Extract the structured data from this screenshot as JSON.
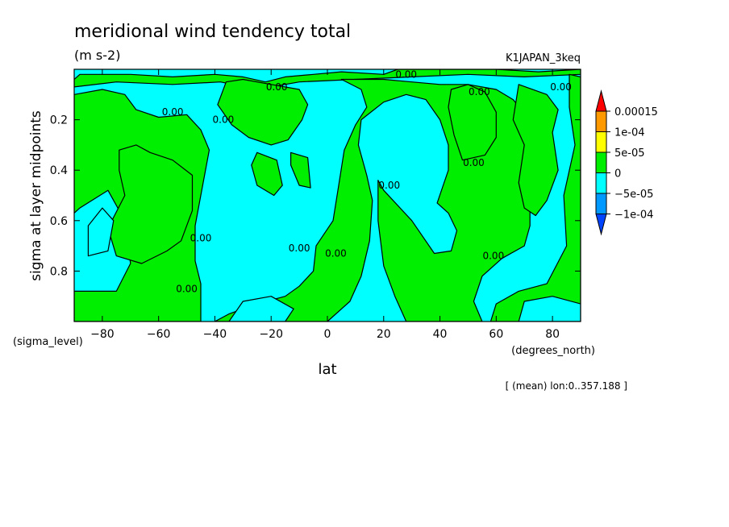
{
  "chart_data": {
    "type": "heatmap",
    "subtype": "filled-contour",
    "title": "meridional wind tendency total",
    "subtitle": "(m s-2)",
    "dataset": "K1JAPAN_3keq",
    "xlabel": "lat",
    "xunits": "(degrees_north)",
    "ylabel": "sigma at layer midpoints",
    "yunits": "(sigma_level)",
    "footnote": "[ (mean) lon:0..357.188 ]",
    "xlim": [
      -90,
      90
    ],
    "ylim": [
      1.0,
      0.0
    ],
    "y_inverted": true,
    "x_ticks": [
      -80,
      -60,
      -40,
      -20,
      0,
      20,
      40,
      60,
      80
    ],
    "x_tick_labels": [
      "−80",
      "−60",
      "−40",
      "−20",
      "0",
      "20",
      "40",
      "60",
      "80"
    ],
    "y_ticks": [
      0.2,
      0.4,
      0.6,
      0.8
    ],
    "y_tick_labels": [
      "0.2",
      "0.4",
      "0.6",
      "0.8"
    ],
    "colorbar": {
      "labels": [
        "0.00015",
        "1e-04",
        "5e-05",
        "0",
        "−5e-05",
        "−1e-04"
      ],
      "colors": [
        "#ff0000",
        "#ff9900",
        "#ffff00",
        "#00ee00",
        "#00ffff",
        "#0099ff",
        "#0044ff"
      ]
    },
    "contour_labels": [
      {
        "text": "0.00",
        "x": -55,
        "y": 0.17
      },
      {
        "text": "0.00",
        "x": -37,
        "y": 0.2
      },
      {
        "text": "0.00",
        "x": -18,
        "y": 0.07
      },
      {
        "text": "0.00",
        "x": 28,
        "y": 0.02
      },
      {
        "text": "0.00",
        "x": 54,
        "y": 0.09
      },
      {
        "text": "0.00",
        "x": 83,
        "y": 0.07
      },
      {
        "text": "0.00",
        "x": 52,
        "y": 0.37
      },
      {
        "text": "0.00",
        "x": 22,
        "y": 0.46
      },
      {
        "text": "0.00",
        "x": -45,
        "y": 0.67
      },
      {
        "text": "0.00",
        "x": -10,
        "y": 0.71
      },
      {
        "text": "0.00",
        "x": 3,
        "y": 0.73
      },
      {
        "text": "0.00",
        "x": -50,
        "y": 0.87
      },
      {
        "text": "0.00",
        "x": 59,
        "y": 0.74
      }
    ],
    "regions": {
      "background": "negative (-5e-05..0)",
      "positive": "0..5e-05",
      "green_polygons": [
        [
          [
            -90,
            0.04
          ],
          [
            -88,
            0.02
          ],
          [
            -70,
            0.02
          ],
          [
            -55,
            0.03
          ],
          [
            -40,
            0.02
          ],
          [
            -30,
            0.03
          ],
          [
            -22,
            0.05
          ],
          [
            -15,
            0.03
          ],
          [
            -5,
            0.02
          ],
          [
            5,
            0.01
          ],
          [
            20,
            0.02
          ],
          [
            25,
            0.0
          ],
          [
            40,
            0.0
          ],
          [
            60,
            0.0
          ],
          [
            75,
            0.01
          ],
          [
            90,
            0.0
          ],
          [
            90,
            0.02
          ],
          [
            70,
            0.03
          ],
          [
            50,
            0.02
          ],
          [
            30,
            0.03
          ],
          [
            10,
            0.04
          ],
          [
            -10,
            0.05
          ],
          [
            -25,
            0.08
          ],
          [
            -38,
            0.05
          ],
          [
            -55,
            0.06
          ],
          [
            -75,
            0.05
          ],
          [
            -90,
            0.07
          ]
        ],
        [
          [
            -90,
            0.1
          ],
          [
            -80,
            0.08
          ],
          [
            -72,
            0.1
          ],
          [
            -68,
            0.16
          ],
          [
            -60,
            0.19
          ],
          [
            -50,
            0.18
          ],
          [
            -45,
            0.24
          ],
          [
            -42,
            0.32
          ],
          [
            -44,
            0.44
          ],
          [
            -47,
            0.62
          ],
          [
            -47,
            0.76
          ],
          [
            -45,
            0.85
          ],
          [
            -45,
            1.0
          ],
          [
            -90,
            1.0
          ],
          [
            -90,
            0.88
          ],
          [
            -75,
            0.88
          ],
          [
            -70,
            0.77
          ],
          [
            -72,
            0.6
          ],
          [
            -78,
            0.48
          ],
          [
            -88,
            0.55
          ],
          [
            -90,
            0.57
          ]
        ],
        [
          [
            -68,
            0.3
          ],
          [
            -63,
            0.33
          ],
          [
            -55,
            0.36
          ],
          [
            -48,
            0.42
          ],
          [
            -48,
            0.56
          ],
          [
            -52,
            0.68
          ],
          [
            -57,
            0.72
          ],
          [
            -66,
            0.77
          ],
          [
            -75,
            0.74
          ],
          [
            -78,
            0.63
          ],
          [
            -72,
            0.5
          ],
          [
            -74,
            0.4
          ],
          [
            -74,
            0.32
          ]
        ],
        [
          [
            -36,
            0.05
          ],
          [
            -30,
            0.04
          ],
          [
            -20,
            0.06
          ],
          [
            -10,
            0.08
          ],
          [
            -7,
            0.14
          ],
          [
            -9,
            0.2
          ],
          [
            -14,
            0.28
          ],
          [
            -20,
            0.3
          ],
          [
            -28,
            0.27
          ],
          [
            -34,
            0.22
          ],
          [
            -39,
            0.14
          ]
        ],
        [
          [
            -25,
            0.33
          ],
          [
            -18,
            0.36
          ],
          [
            -16,
            0.46
          ],
          [
            -19,
            0.5
          ],
          [
            -25,
            0.46
          ],
          [
            -27,
            0.38
          ]
        ],
        [
          [
            -13,
            0.33
          ],
          [
            -7,
            0.35
          ],
          [
            -6,
            0.47
          ],
          [
            -10,
            0.46
          ],
          [
            -13,
            0.38
          ]
        ],
        [
          [
            5,
            0.04
          ],
          [
            12,
            0.08
          ],
          [
            14,
            0.15
          ],
          [
            10,
            0.22
          ],
          [
            6,
            0.32
          ],
          [
            4,
            0.46
          ],
          [
            2,
            0.6
          ],
          [
            -4,
            0.7
          ],
          [
            -5,
            0.8
          ],
          [
            -10,
            0.86
          ],
          [
            -15,
            0.9
          ],
          [
            -25,
            0.93
          ],
          [
            -35,
            0.97
          ],
          [
            -40,
            1.0
          ],
          [
            0,
            1.0
          ],
          [
            8,
            0.92
          ],
          [
            12,
            0.82
          ],
          [
            15,
            0.68
          ],
          [
            16,
            0.52
          ],
          [
            14,
            0.42
          ],
          [
            11,
            0.3
          ],
          [
            12,
            0.2
          ],
          [
            20,
            0.13
          ],
          [
            28,
            0.1
          ],
          [
            35,
            0.12
          ],
          [
            40,
            0.2
          ],
          [
            43,
            0.3
          ],
          [
            43,
            0.4
          ],
          [
            39,
            0.53
          ],
          [
            43,
            0.57
          ],
          [
            46,
            0.64
          ],
          [
            44,
            0.72
          ],
          [
            38,
            0.73
          ],
          [
            30,
            0.6
          ],
          [
            20,
            0.48
          ],
          [
            18,
            0.44
          ],
          [
            18,
            0.6
          ],
          [
            20,
            0.78
          ],
          [
            24,
            0.9
          ],
          [
            28,
            1.0
          ],
          [
            55,
            1.0
          ],
          [
            52,
            0.92
          ],
          [
            55,
            0.82
          ],
          [
            62,
            0.75
          ],
          [
            70,
            0.7
          ],
          [
            72,
            0.62
          ],
          [
            72,
            0.48
          ],
          [
            74,
            0.3
          ],
          [
            72,
            0.2
          ],
          [
            66,
            0.12
          ],
          [
            60,
            0.08
          ],
          [
            50,
            0.06
          ],
          [
            40,
            0.06
          ],
          [
            30,
            0.05
          ],
          [
            20,
            0.04
          ]
        ],
        [
          [
            44,
            0.08
          ],
          [
            50,
            0.06
          ],
          [
            56,
            0.09
          ],
          [
            60,
            0.17
          ],
          [
            60,
            0.27
          ],
          [
            56,
            0.34
          ],
          [
            48,
            0.36
          ],
          [
            45,
            0.26
          ],
          [
            43,
            0.15
          ]
        ],
        [
          [
            68,
            0.06
          ],
          [
            78,
            0.1
          ],
          [
            82,
            0.16
          ],
          [
            80,
            0.25
          ],
          [
            82,
            0.4
          ],
          [
            78,
            0.52
          ],
          [
            74,
            0.58
          ],
          [
            70,
            0.55
          ],
          [
            68,
            0.45
          ],
          [
            70,
            0.3
          ],
          [
            66,
            0.2
          ]
        ],
        [
          [
            86,
            0.02
          ],
          [
            90,
            0.03
          ],
          [
            90,
            1.0
          ],
          [
            58,
            1.0
          ],
          [
            60,
            0.93
          ],
          [
            68,
            0.88
          ],
          [
            78,
            0.85
          ],
          [
            85,
            0.7
          ],
          [
            84,
            0.5
          ],
          [
            88,
            0.3
          ],
          [
            86,
            0.15
          ]
        ]
      ],
      "cyan_polygons": [
        [
          [
            -85,
            0.62
          ],
          [
            -80,
            0.55
          ],
          [
            -76,
            0.6
          ],
          [
            -78,
            0.72
          ],
          [
            -85,
            0.74
          ]
        ],
        [
          [
            -30,
            0.92
          ],
          [
            -20,
            0.9
          ],
          [
            -12,
            0.95
          ],
          [
            -15,
            1.0
          ],
          [
            -35,
            1.0
          ]
        ],
        [
          [
            70,
            0.92
          ],
          [
            80,
            0.9
          ],
          [
            90,
            0.93
          ],
          [
            90,
            1.0
          ],
          [
            68,
            1.0
          ]
        ]
      ]
    }
  }
}
